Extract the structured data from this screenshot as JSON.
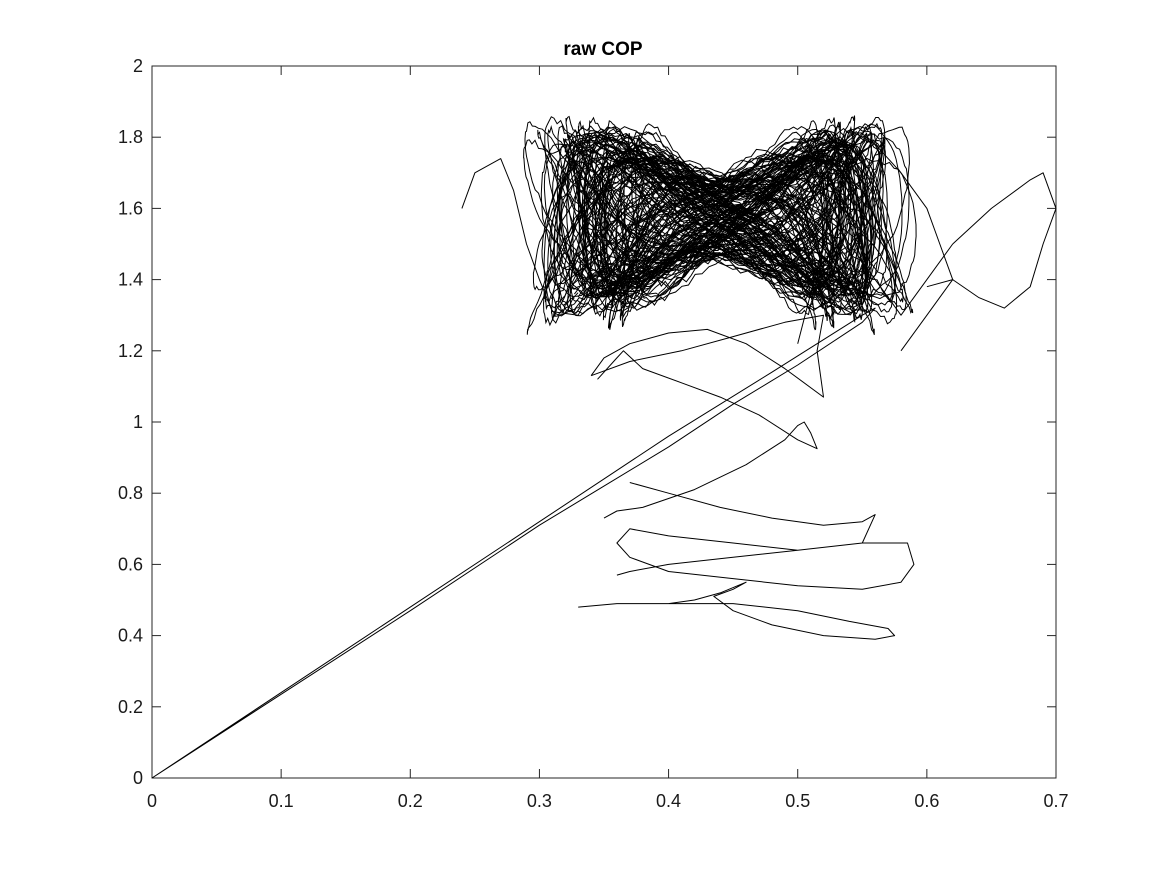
{
  "chart_data": {
    "type": "line",
    "title": "raw COP",
    "xlabel": "",
    "ylabel": "",
    "xlim": [
      0,
      0.7
    ],
    "ylim": [
      0,
      2
    ],
    "xticks": [
      "0",
      "0.1",
      "0.2",
      "0.3",
      "0.4",
      "0.5",
      "0.6",
      "0.7"
    ],
    "yticks": [
      "0",
      "0.2",
      "0.4",
      "0.6",
      "0.8",
      "1",
      "1.2",
      "1.4",
      "1.6",
      "1.8",
      "2"
    ],
    "grid": false,
    "legend": "none",
    "line_color": "#000000",
    "series": [
      {
        "x": [
          0.0,
          0.1,
          0.2,
          0.3,
          0.4,
          0.48,
          0.55,
          0.56,
          0.55,
          0.5,
          0.45,
          0.4,
          0.35,
          0.3,
          0.2,
          0.1,
          0.0
        ],
        "y": [
          0.0,
          0.24,
          0.48,
          0.72,
          0.96,
          1.14,
          1.3,
          1.32,
          1.28,
          1.16,
          1.05,
          0.93,
          0.82,
          0.71,
          0.47,
          0.235,
          0.0
        ]
      },
      {
        "x": [
          0.35,
          0.36,
          0.38,
          0.42,
          0.46,
          0.49,
          0.5,
          0.505,
          0.51,
          0.515,
          0.5,
          0.47,
          0.44,
          0.41,
          0.38,
          0.365,
          0.36,
          0.345
        ],
        "y": [
          0.73,
          0.75,
          0.76,
          0.81,
          0.88,
          0.95,
          0.99,
          1.0,
          0.97,
          0.925,
          0.95,
          1.02,
          1.07,
          1.11,
          1.15,
          1.2,
          1.18,
          1.12
        ]
      },
      {
        "x": [
          0.37,
          0.4,
          0.44,
          0.48,
          0.52,
          0.55,
          0.56,
          0.55,
          0.5,
          0.45,
          0.4,
          0.37,
          0.36,
          0.37,
          0.4,
          0.45,
          0.5,
          0.55,
          0.58,
          0.59,
          0.585,
          0.55,
          0.5,
          0.45,
          0.4,
          0.37,
          0.36
        ],
        "y": [
          0.83,
          0.8,
          0.76,
          0.73,
          0.71,
          0.72,
          0.74,
          0.66,
          0.64,
          0.66,
          0.68,
          0.7,
          0.66,
          0.62,
          0.58,
          0.56,
          0.54,
          0.53,
          0.55,
          0.6,
          0.66,
          0.66,
          0.64,
          0.62,
          0.6,
          0.58,
          0.57
        ]
      },
      {
        "x": [
          0.33,
          0.36,
          0.4,
          0.45,
          0.5,
          0.54,
          0.57,
          0.575,
          0.56,
          0.52,
          0.48,
          0.45,
          0.435,
          0.45,
          0.46,
          0.44,
          0.42,
          0.4
        ],
        "y": [
          0.48,
          0.49,
          0.49,
          0.49,
          0.47,
          0.44,
          0.42,
          0.4,
          0.39,
          0.4,
          0.43,
          0.47,
          0.51,
          0.53,
          0.55,
          0.52,
          0.5,
          0.49
        ]
      },
      {
        "x": [
          0.24,
          0.25,
          0.27,
          0.28,
          0.29,
          0.3,
          0.31,
          0.33,
          0.35,
          0.37,
          0.4,
          0.42,
          0.45,
          0.47,
          0.5,
          0.53,
          0.55,
          0.57,
          0.58,
          0.6,
          0.62
        ],
        "y": [
          1.6,
          1.7,
          1.74,
          1.65,
          1.5,
          1.4,
          1.31,
          1.3,
          1.44,
          1.55,
          1.6,
          1.62,
          1.6,
          1.58,
          1.62,
          1.55,
          1.45,
          1.35,
          1.3,
          1.4,
          1.5
        ]
      },
      {
        "x": [
          0.62,
          0.65,
          0.68,
          0.69,
          0.7,
          0.69,
          0.68,
          0.66,
          0.64,
          0.62,
          0.6
        ],
        "y": [
          1.5,
          1.6,
          1.68,
          1.7,
          1.6,
          1.5,
          1.38,
          1.32,
          1.35,
          1.4,
          1.38
        ]
      },
      {
        "x": [
          0.58,
          0.6,
          0.62,
          0.61,
          0.6,
          0.58,
          0.56,
          0.54,
          0.53,
          0.52,
          0.5
        ],
        "y": [
          1.2,
          1.3,
          1.4,
          1.5,
          1.6,
          1.7,
          1.78,
          1.82,
          1.7,
          1.5,
          1.22
        ]
      },
      {
        "x": [
          0.34,
          0.37,
          0.41,
          0.45,
          0.49,
          0.52,
          0.515,
          0.52,
          0.49,
          0.46,
          0.43,
          0.4,
          0.37,
          0.35,
          0.34
        ],
        "y": [
          1.13,
          1.17,
          1.2,
          1.24,
          1.28,
          1.3,
          1.2,
          1.07,
          1.15,
          1.22,
          1.26,
          1.25,
          1.22,
          1.18,
          1.13
        ]
      }
    ],
    "dense_cluster": {
      "description_x_range": [
        0.3,
        0.58
      ],
      "description_y_range": [
        1.27,
        1.87
      ]
    }
  }
}
